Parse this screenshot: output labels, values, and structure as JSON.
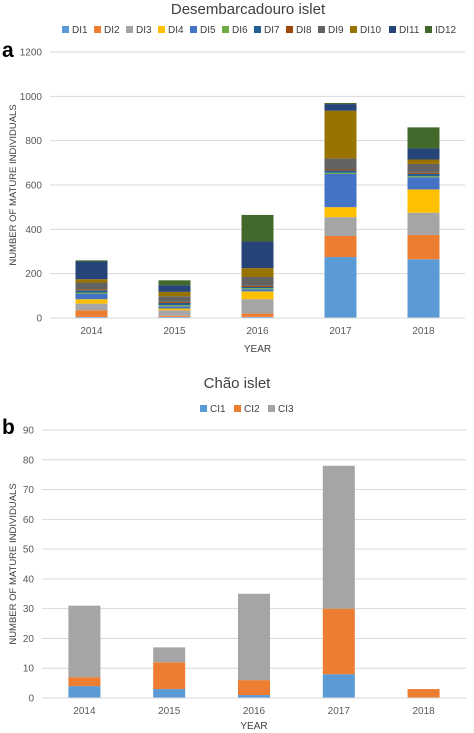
{
  "panels": [
    {
      "panel_letter": "a",
      "chart_data": {
        "type": "bar",
        "stacked": true,
        "title": "Desembarcadouro islet",
        "xlabel": "YEAR",
        "ylabel": "NUMBER OF MATURE INDIVIDUALS",
        "categories": [
          "2014",
          "2015",
          "2016",
          "2017",
          "2018"
        ],
        "ylim": [
          0,
          1200
        ],
        "yticks": [
          0,
          200,
          400,
          600,
          800,
          1000,
          1200
        ],
        "grid": true,
        "legend_position": "top",
        "series": [
          {
            "name": "DI1",
            "color": "#5b9bd5",
            "values": [
              5,
              5,
              5,
              275,
              265
            ]
          },
          {
            "name": "DI2",
            "color": "#ed7d31",
            "values": [
              30,
              5,
              15,
              95,
              110
            ]
          },
          {
            "name": "DI3",
            "color": "#a5a5a5",
            "values": [
              30,
              25,
              65,
              85,
              100
            ]
          },
          {
            "name": "DI4",
            "color": "#ffc000",
            "values": [
              20,
              8,
              35,
              45,
              105
            ]
          },
          {
            "name": "DI5",
            "color": "#4472c4",
            "values": [
              25,
              10,
              10,
              150,
              55
            ]
          },
          {
            "name": "DI6",
            "color": "#70ad47",
            "values": [
              5,
              5,
              5,
              5,
              5
            ]
          },
          {
            "name": "DI7",
            "color": "#255e91",
            "values": [
              10,
              10,
              5,
              10,
              10
            ]
          },
          {
            "name": "DI8",
            "color": "#9e480e",
            "values": [
              5,
              5,
              5,
              5,
              5
            ]
          },
          {
            "name": "DI9",
            "color": "#636363",
            "values": [
              30,
              25,
              40,
              50,
              40
            ]
          },
          {
            "name": "DI10",
            "color": "#997300",
            "values": [
              15,
              20,
              40,
              215,
              20
            ]
          },
          {
            "name": "DI11",
            "color": "#264478",
            "values": [
              80,
              30,
              120,
              30,
              50
            ]
          },
          {
            "name": "ID12",
            "color": "#43682b",
            "values": [
              5,
              22,
              120,
              5,
              95
            ]
          }
        ]
      }
    },
    {
      "panel_letter": "b",
      "chart_data": {
        "type": "bar",
        "stacked": true,
        "title": "Chão islet",
        "xlabel": "YEAR",
        "ylabel": "NUMBER OF MATURE INDIVIDUALS",
        "categories": [
          "2014",
          "2015",
          "2016",
          "2017",
          "2018"
        ],
        "ylim": [
          0,
          90
        ],
        "yticks": [
          0,
          10,
          20,
          30,
          40,
          50,
          60,
          70,
          80,
          90
        ],
        "grid": true,
        "legend_position": "top",
        "series": [
          {
            "name": "CI1",
            "color": "#5b9bd5",
            "values": [
              4,
              3,
              1,
              8,
              0
            ]
          },
          {
            "name": "CI2",
            "color": "#ed7d31",
            "values": [
              3,
              9,
              5,
              22,
              3
            ]
          },
          {
            "name": "CI3",
            "color": "#a5a5a5",
            "values": [
              24,
              5,
              29,
              48,
              0
            ]
          }
        ]
      }
    }
  ]
}
